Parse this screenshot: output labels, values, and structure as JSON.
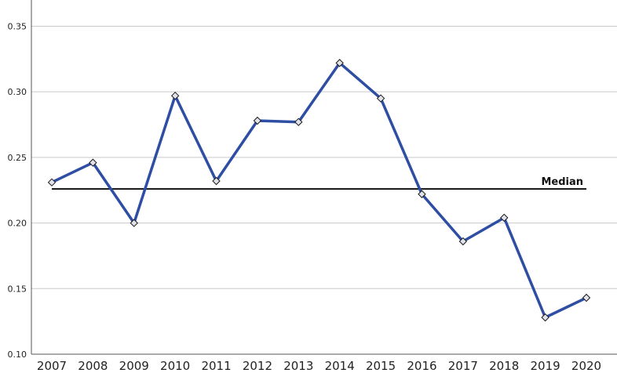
{
  "chart_data": {
    "type": "line",
    "title": "",
    "xlabel": "",
    "ylabel": "",
    "x": [
      "2007",
      "2008",
      "2009",
      "2010",
      "2011",
      "2012",
      "2013",
      "2014",
      "2015",
      "2016",
      "2017",
      "2018",
      "2019",
      "2020"
    ],
    "series": [
      {
        "values": [
          0.231,
          0.246,
          0.2,
          0.297,
          0.232,
          0.278,
          0.277,
          0.322,
          0.295,
          0.222,
          0.186,
          0.204,
          0.128,
          0.143
        ],
        "color": "#2e4ea3",
        "marker": "diamond"
      }
    ],
    "reference_line": {
      "label": "Median",
      "value": 0.226,
      "color": "#111111"
    },
    "ylim": [
      0.1,
      0.37
    ],
    "yticks": [
      "0.10",
      "0.15",
      "0.20",
      "0.25",
      "0.30",
      "0.35"
    ],
    "grid": true,
    "legend": "none"
  }
}
